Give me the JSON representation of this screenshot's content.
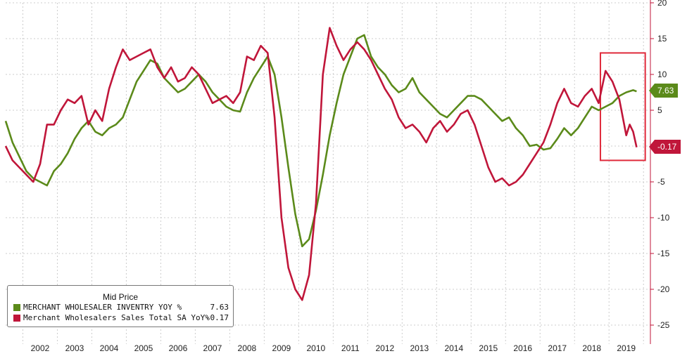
{
  "chart_data": {
    "type": "line",
    "legend_title": "Mid Price",
    "legend_placement": "bottom-left",
    "grid": true,
    "xlim": [
      2001.0,
      2019.7
    ],
    "ylim": [
      -25,
      20
    ],
    "yticks": [
      -25,
      -20,
      -15,
      -10,
      -5,
      0,
      5,
      10,
      15,
      20
    ],
    "ytick_labels": [
      "-25",
      "-20",
      "-15",
      "-10",
      "-5",
      "0",
      "5",
      "10",
      "15",
      "20"
    ],
    "xtick_years": [
      "2002",
      "2003",
      "2004",
      "2005",
      "2006",
      "2007",
      "2008",
      "2009",
      "2010",
      "2011",
      "2012",
      "2013",
      "2014",
      "2015",
      "2016",
      "2017",
      "2018",
      "2019"
    ],
    "series": [
      {
        "name": "MERCHANT WHOLESALER INVENTRY YOY %",
        "last_value_label": "7.63",
        "color": "#5b8a1a",
        "points": [
          [
            2001.0,
            3.5
          ],
          [
            2001.2,
            0.5
          ],
          [
            2001.4,
            -1.5
          ],
          [
            2001.6,
            -3.5
          ],
          [
            2001.8,
            -4.5
          ],
          [
            2002.0,
            -5.0
          ],
          [
            2002.2,
            -5.5
          ],
          [
            2002.4,
            -3.5
          ],
          [
            2002.6,
            -2.5
          ],
          [
            2002.8,
            -1.0
          ],
          [
            2003.0,
            1.0
          ],
          [
            2003.2,
            2.5
          ],
          [
            2003.4,
            3.5
          ],
          [
            2003.6,
            2.0
          ],
          [
            2003.8,
            1.5
          ],
          [
            2004.0,
            2.5
          ],
          [
            2004.2,
            3.0
          ],
          [
            2004.4,
            4.0
          ],
          [
            2004.6,
            6.5
          ],
          [
            2004.8,
            9.0
          ],
          [
            2005.0,
            10.5
          ],
          [
            2005.2,
            12.0
          ],
          [
            2005.4,
            11.5
          ],
          [
            2005.6,
            9.5
          ],
          [
            2005.8,
            8.5
          ],
          [
            2006.0,
            7.5
          ],
          [
            2006.2,
            8.0
          ],
          [
            2006.4,
            9.0
          ],
          [
            2006.6,
            10.0
          ],
          [
            2006.8,
            9.0
          ],
          [
            2007.0,
            7.5
          ],
          [
            2007.2,
            6.5
          ],
          [
            2007.4,
            5.5
          ],
          [
            2007.6,
            5.0
          ],
          [
            2007.8,
            4.8
          ],
          [
            2008.0,
            7.5
          ],
          [
            2008.2,
            9.5
          ],
          [
            2008.4,
            11.0
          ],
          [
            2008.6,
            12.5
          ],
          [
            2008.8,
            10.0
          ],
          [
            2009.0,
            4.0
          ],
          [
            2009.2,
            -3.0
          ],
          [
            2009.4,
            -9.5
          ],
          [
            2009.6,
            -14.0
          ],
          [
            2009.8,
            -13.0
          ],
          [
            2010.0,
            -9.0
          ],
          [
            2010.2,
            -4.0
          ],
          [
            2010.4,
            1.5
          ],
          [
            2010.6,
            6.0
          ],
          [
            2010.8,
            10.0
          ],
          [
            2011.0,
            12.5
          ],
          [
            2011.2,
            15.0
          ],
          [
            2011.4,
            15.5
          ],
          [
            2011.6,
            12.5
          ],
          [
            2011.8,
            11.0
          ],
          [
            2012.0,
            10.0
          ],
          [
            2012.2,
            8.5
          ],
          [
            2012.4,
            7.5
          ],
          [
            2012.6,
            8.0
          ],
          [
            2012.8,
            9.5
          ],
          [
            2013.0,
            7.5
          ],
          [
            2013.2,
            6.5
          ],
          [
            2013.4,
            5.5
          ],
          [
            2013.6,
            4.5
          ],
          [
            2013.8,
            4.0
          ],
          [
            2014.0,
            5.0
          ],
          [
            2014.2,
            6.0
          ],
          [
            2014.4,
            7.0
          ],
          [
            2014.6,
            7.0
          ],
          [
            2014.8,
            6.5
          ],
          [
            2015.0,
            5.5
          ],
          [
            2015.2,
            4.5
          ],
          [
            2015.4,
            3.5
          ],
          [
            2015.6,
            4.0
          ],
          [
            2015.8,
            2.5
          ],
          [
            2016.0,
            1.5
          ],
          [
            2016.2,
            0.0
          ],
          [
            2016.4,
            0.2
          ],
          [
            2016.6,
            -0.5
          ],
          [
            2016.8,
            -0.3
          ],
          [
            2017.0,
            1.0
          ],
          [
            2017.2,
            2.5
          ],
          [
            2017.4,
            1.5
          ],
          [
            2017.6,
            2.5
          ],
          [
            2017.8,
            4.0
          ],
          [
            2018.0,
            5.5
          ],
          [
            2018.2,
            5.0
          ],
          [
            2018.4,
            5.5
          ],
          [
            2018.6,
            6.0
          ],
          [
            2018.8,
            7.0
          ],
          [
            2019.0,
            7.5
          ],
          [
            2019.2,
            7.8
          ],
          [
            2019.3,
            7.63
          ]
        ]
      },
      {
        "name": "Merchant Wholesalers Sales Total SA YoY%",
        "last_value_label": "-0.17",
        "color": "#c0163a",
        "points": [
          [
            2001.0,
            0.0
          ],
          [
            2001.2,
            -2.0
          ],
          [
            2001.4,
            -3.0
          ],
          [
            2001.6,
            -4.0
          ],
          [
            2001.8,
            -5.0
          ],
          [
            2002.0,
            -2.5
          ],
          [
            2002.2,
            3.0
          ],
          [
            2002.4,
            3.0
          ],
          [
            2002.6,
            5.0
          ],
          [
            2002.8,
            6.5
          ],
          [
            2003.0,
            6.0
          ],
          [
            2003.2,
            7.0
          ],
          [
            2003.4,
            3.0
          ],
          [
            2003.6,
            5.0
          ],
          [
            2003.8,
            3.5
          ],
          [
            2004.0,
            8.0
          ],
          [
            2004.2,
            11.0
          ],
          [
            2004.4,
            13.5
          ],
          [
            2004.6,
            12.0
          ],
          [
            2004.8,
            12.5
          ],
          [
            2005.0,
            13.0
          ],
          [
            2005.2,
            13.5
          ],
          [
            2005.4,
            11.0
          ],
          [
            2005.6,
            9.5
          ],
          [
            2005.8,
            11.0
          ],
          [
            2006.0,
            9.0
          ],
          [
            2006.2,
            9.5
          ],
          [
            2006.4,
            11.0
          ],
          [
            2006.6,
            10.0
          ],
          [
            2006.8,
            8.0
          ],
          [
            2007.0,
            6.0
          ],
          [
            2007.2,
            6.5
          ],
          [
            2007.4,
            7.0
          ],
          [
            2007.6,
            6.0
          ],
          [
            2007.8,
            7.5
          ],
          [
            2008.0,
            12.5
          ],
          [
            2008.2,
            12.0
          ],
          [
            2008.4,
            14.0
          ],
          [
            2008.6,
            13.0
          ],
          [
            2008.8,
            4.0
          ],
          [
            2009.0,
            -10.0
          ],
          [
            2009.2,
            -17.0
          ],
          [
            2009.4,
            -20.0
          ],
          [
            2009.6,
            -21.5
          ],
          [
            2009.8,
            -18.0
          ],
          [
            2010.0,
            -8.0
          ],
          [
            2010.2,
            10.0
          ],
          [
            2010.4,
            16.5
          ],
          [
            2010.6,
            14.0
          ],
          [
            2010.8,
            12.0
          ],
          [
            2011.0,
            13.5
          ],
          [
            2011.2,
            14.5
          ],
          [
            2011.4,
            13.5
          ],
          [
            2011.6,
            12.0
          ],
          [
            2011.8,
            10.0
          ],
          [
            2012.0,
            8.0
          ],
          [
            2012.2,
            6.5
          ],
          [
            2012.4,
            4.0
          ],
          [
            2012.6,
            2.5
          ],
          [
            2012.8,
            3.0
          ],
          [
            2013.0,
            2.0
          ],
          [
            2013.2,
            0.5
          ],
          [
            2013.4,
            2.5
          ],
          [
            2013.6,
            3.5
          ],
          [
            2013.8,
            2.0
          ],
          [
            2014.0,
            3.0
          ],
          [
            2014.2,
            4.5
          ],
          [
            2014.4,
            5.0
          ],
          [
            2014.6,
            3.0
          ],
          [
            2014.8,
            0.0
          ],
          [
            2015.0,
            -3.0
          ],
          [
            2015.2,
            -5.0
          ],
          [
            2015.4,
            -4.5
          ],
          [
            2015.6,
            -5.5
          ],
          [
            2015.8,
            -5.0
          ],
          [
            2016.0,
            -4.0
          ],
          [
            2016.2,
            -2.5
          ],
          [
            2016.4,
            -1.0
          ],
          [
            2016.6,
            0.5
          ],
          [
            2016.8,
            3.0
          ],
          [
            2017.0,
            6.0
          ],
          [
            2017.2,
            8.0
          ],
          [
            2017.4,
            6.0
          ],
          [
            2017.6,
            5.5
          ],
          [
            2017.8,
            7.0
          ],
          [
            2018.0,
            8.0
          ],
          [
            2018.2,
            6.0
          ],
          [
            2018.4,
            10.5
          ],
          [
            2018.6,
            9.0
          ],
          [
            2018.8,
            6.5
          ],
          [
            2019.0,
            1.5
          ],
          [
            2019.1,
            3.0
          ],
          [
            2019.2,
            2.0
          ],
          [
            2019.3,
            -0.17
          ]
        ]
      }
    ],
    "annotation": {
      "type": "rectangle",
      "color": "#e02a3b",
      "x0": 2018.25,
      "x1": 2019.55,
      "y0": -2.0,
      "y1": 13.0
    },
    "colors": {
      "axis": "#c0163a",
      "grid": "#cccccc"
    }
  }
}
